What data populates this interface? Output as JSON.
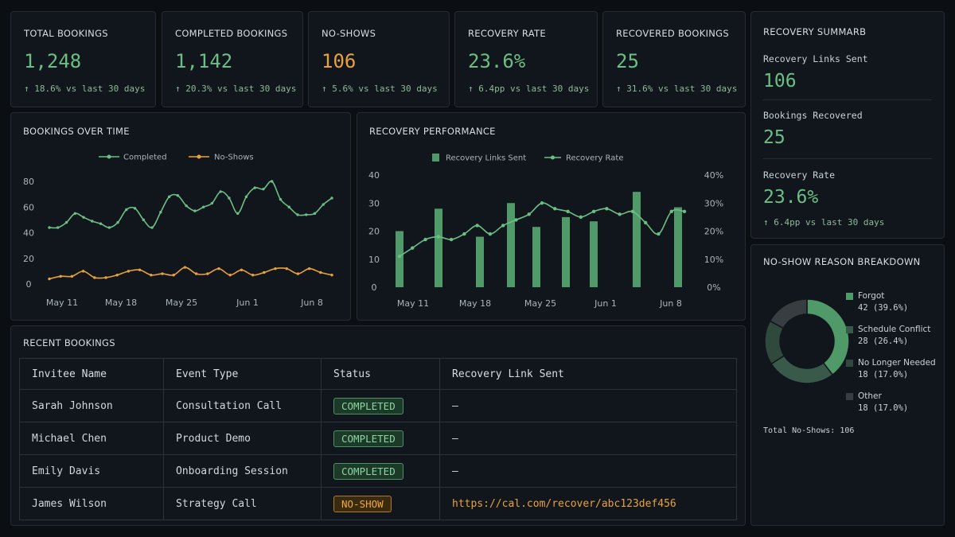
{
  "kpis": [
    {
      "label": "TOTAL BOOKINGS",
      "value": "1,248",
      "arrow": "↑",
      "delta": "18.6% vs last 30 days"
    },
    {
      "label": "COMPLETED BOOKINGS",
      "value": "1,142",
      "arrow": "↑",
      "delta": "20.3% vs last 30 days"
    },
    {
      "label": "NO-SHOWS",
      "value": "106",
      "arrow": "↑",
      "delta": "5.6% vs last 30 days"
    },
    {
      "label": "RECOVERY RATE",
      "value": "23.6%",
      "arrow": "↑",
      "delta": "6.4pp vs last 30 days"
    },
    {
      "label": "RECOVERED BOOKINGS",
      "value": "25",
      "arrow": "↑",
      "delta": "31.6% vs last 30 days"
    }
  ],
  "recovery_summary": {
    "title": "RECOVERY SUMMARB",
    "links_label": "Recovery Links Sent",
    "links_value": "106",
    "recovered_label": "Bookings Recovered",
    "recovered_value": "25",
    "rate_label": "Recovery Rate",
    "rate_value": "23.6%",
    "rate_arrow": "↑",
    "rate_delta": "6.4pp vs last 30 days"
  },
  "colors": {
    "green": "#6cbf84",
    "bar_green": "#4f9a68",
    "orange": "#e9a23b",
    "donut_forgot": "#4f9a68",
    "donut_conflict": "#39594a",
    "donut_nolonger": "#2f4a3d",
    "donut_other": "#383d42"
  },
  "bookings_chart": {
    "title": "BOOKINGS OVER TIME",
    "legend": [
      "Completed",
      "No-Shows"
    ]
  },
  "recovery_chart": {
    "title": "RECOVERY PERFORMANCE",
    "legend": [
      "Recovery Links Sent",
      "Recovery Rate"
    ]
  },
  "chart_data": [
    {
      "type": "line",
      "title": "BOOKINGS OVER TIME",
      "xlabel": "",
      "ylabel": "",
      "x_ticks": [
        "May 11",
        "May 18",
        "May 25",
        "Jun 1",
        "Jun 8"
      ],
      "y_ticks": [
        "0",
        "20",
        "40",
        "60",
        "80"
      ],
      "ylim": [
        0,
        80
      ],
      "legend_position": "top",
      "series": [
        {
          "name": "Completed",
          "values": [
            44,
            44,
            48,
            55,
            52,
            49,
            47,
            44,
            48,
            58,
            59,
            50,
            44,
            56,
            68,
            69,
            61,
            57,
            60,
            63,
            72,
            67,
            55,
            68,
            75,
            74,
            80,
            66,
            60,
            54,
            54,
            55,
            62,
            67
          ]
        },
        {
          "name": "No-Shows",
          "values": [
            4,
            6,
            6,
            10,
            5,
            5,
            7,
            10,
            11,
            7,
            8,
            7,
            13,
            8,
            8,
            12,
            7,
            11,
            7,
            9,
            12,
            12,
            8,
            12,
            9,
            7
          ]
        }
      ]
    },
    {
      "type": "bar",
      "title": "RECOVERY PERFORMANCE",
      "xlabel": "",
      "ylabel": "",
      "x_ticks": [
        "May 11",
        "May 18",
        "May 25",
        "Jun 1",
        "Jun 8"
      ],
      "y_ticks_left": [
        "0",
        "10",
        "20",
        "30",
        "40"
      ],
      "y_ticks_right": [
        "0%",
        "10%",
        "20%",
        "30%",
        "40%"
      ],
      "ylim": [
        0,
        40
      ],
      "y2lim": [
        0,
        40
      ],
      "legend_position": "top",
      "series": [
        {
          "name": "Recovery Links Sent",
          "type": "bar",
          "values": [
            20,
            28,
            18,
            30,
            21.5,
            25,
            23.5,
            34,
            28.5
          ]
        },
        {
          "name": "Recovery Rate",
          "type": "line",
          "values": [
            11,
            14,
            17,
            18,
            17,
            19,
            22,
            19,
            22,
            24,
            26,
            30,
            28,
            27,
            25,
            27,
            28,
            26,
            27,
            23,
            19,
            27,
            27
          ]
        }
      ]
    },
    {
      "type": "pie",
      "title": "NO-SHOW REASON BREAKDOWN",
      "categories": [
        "Forgot",
        "Schedule Conflict",
        "No Longer Needed",
        "Other"
      ],
      "values": [
        42,
        28,
        18,
        18
      ],
      "percents": [
        39.6,
        26.4,
        17.0,
        17.0
      ]
    }
  ],
  "donut": {
    "title": "NO-SHOW REASON BREAKDOWN",
    "items": [
      {
        "name": "Forgot",
        "detail": "42 (39.6%)"
      },
      {
        "name": "Schedule Conflict",
        "detail": "28 (26.4%)"
      },
      {
        "name": "No Longer Needed",
        "detail": "18 (17.0%)"
      },
      {
        "name": "Other",
        "detail": "18 (17.0%)"
      }
    ],
    "total": "Total No-Shows: 106"
  },
  "recent": {
    "title": "RECENT BOOKINGS",
    "headers": [
      "Invitee Name",
      "Event Type",
      "Status",
      "Recovery Link Sent"
    ],
    "rows": [
      {
        "name": "Sarah Johnson",
        "event": "Consultation Call",
        "status": "COMPLETED",
        "link": "—"
      },
      {
        "name": "Michael Chen",
        "event": "Product Demo",
        "status": "COMPLETED",
        "link": "—"
      },
      {
        "name": "Emily Davis",
        "event": "Onboarding Session",
        "status": "COMPLETED",
        "link": "—"
      },
      {
        "name": "James Wilson",
        "event": "Strategy Call",
        "status": "NO-SHOW",
        "link": "https://cal.com/recover/abc123def456"
      }
    ]
  }
}
